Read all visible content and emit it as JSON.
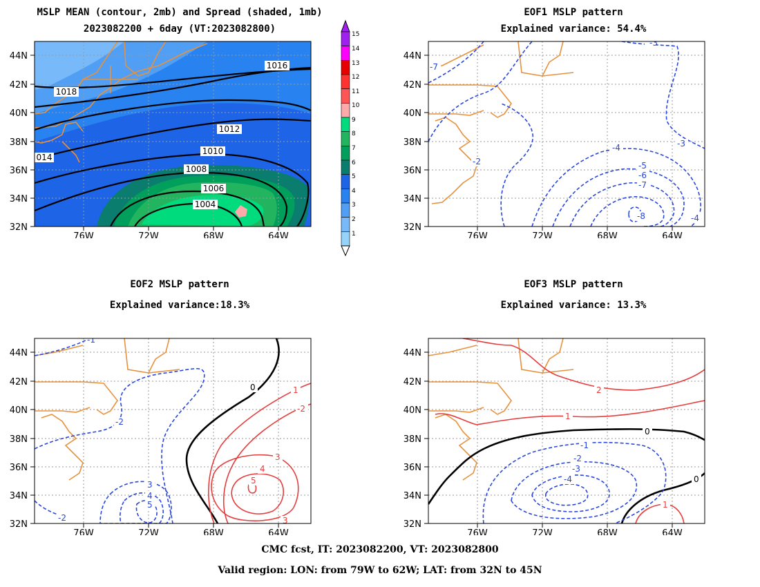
{
  "panel_mean": {
    "title_line1": "MSLP MEAN (contour, 2mb) and Spread (shaded, 1mb)",
    "title_line2": "2023082200 + 6day (VT:2023082800)",
    "contour_labels": [
      "1016",
      "1018",
      "1012",
      "014",
      "1010",
      "1008",
      "1006",
      "1004"
    ]
  },
  "panel_eof1": {
    "title": "EOF1 MSLP pattern",
    "subtitle": "Explained variance: 54.4%",
    "contour_labels": [
      "-3",
      "-7",
      "-2",
      "-3",
      "-4",
      "-5",
      "-6",
      "-7",
      "-8",
      "-4"
    ]
  },
  "panel_eof2": {
    "title": "EOF2 MSLP pattern",
    "subtitle": "Explained variance:18.3%",
    "contour_labels": [
      "-1",
      "-2",
      "0",
      "1",
      "-2",
      "3",
      "4",
      "5",
      "3",
      "4",
      "5",
      "-2",
      "3"
    ]
  },
  "panel_eof3": {
    "title": "EOF3 MSLP pattern",
    "subtitle": "Explained variance: 13.3%",
    "contour_labels": [
      "2",
      "1",
      "0",
      "-1",
      "-2",
      "-3",
      "-4",
      "0",
      "1"
    ]
  },
  "axes": {
    "lat_labels": [
      "44N",
      "42N",
      "40N",
      "38N",
      "36N",
      "34N",
      "32N"
    ],
    "lon_labels": [
      "76W",
      "72W",
      "68W",
      "64W"
    ]
  },
  "colorbar": {
    "labels": [
      "15",
      "14",
      "13",
      "12",
      "11",
      "10",
      "9",
      "8",
      "7",
      "6",
      "5",
      "4",
      "3",
      "2",
      "1"
    ],
    "colors": [
      "#a020f0",
      "#ff00ff",
      "#e60000",
      "#ff3232",
      "#ff5555",
      "#ffaaaa",
      "#00dc7d",
      "#23b45f",
      "#009f5b",
      "#0a7d6e",
      "#1e64e6",
      "#2882f0",
      "#509ff5",
      "#78b9fa",
      "#96d2fa"
    ]
  },
  "colors": {
    "coast": "#e8913c",
    "negative_contour": "#2846dc",
    "positive_contour": "#e63c3c"
  },
  "footer": {
    "line1": "CMC fcst, IT: 2023082200, VT: 2023082800",
    "line2": "Valid region: LON: from 79W to 62W; LAT: from 32N to 45N"
  }
}
